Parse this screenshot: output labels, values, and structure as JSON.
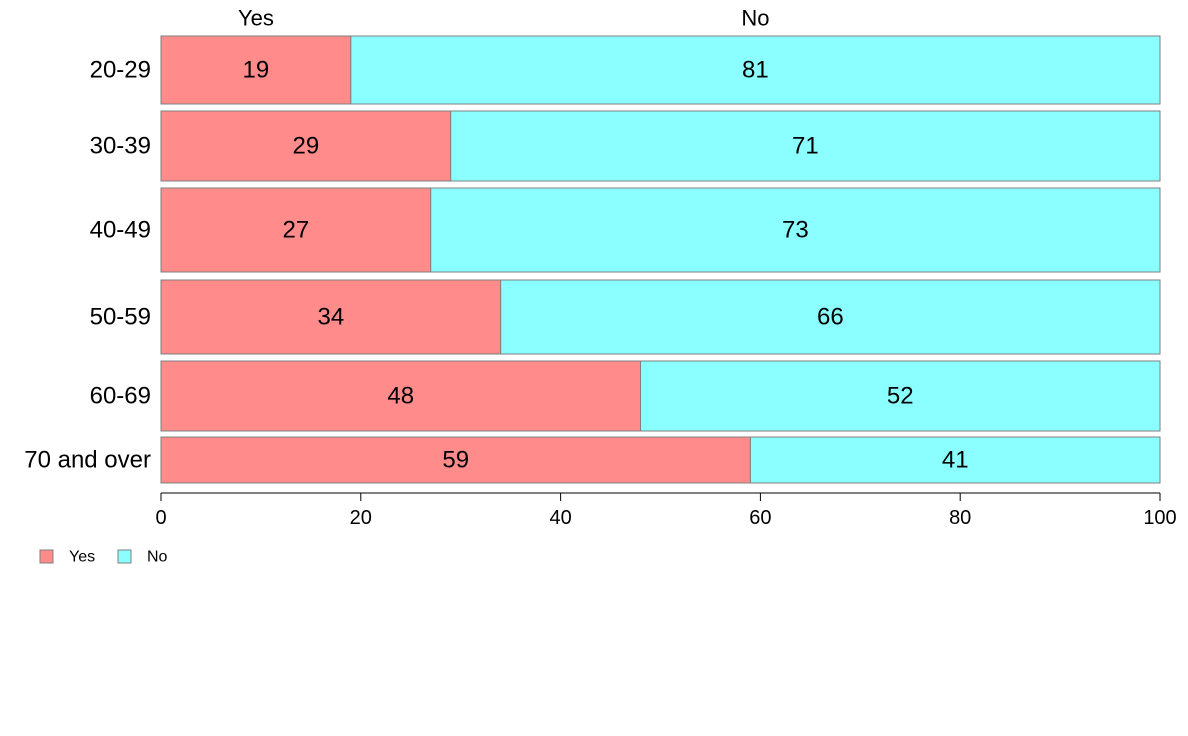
{
  "chart_data": {
    "type": "bar",
    "orientation": "horizontal",
    "stacked": true,
    "categories": [
      "20-29",
      "30-39",
      "40-49",
      "50-59",
      "60-69",
      "70 and over"
    ],
    "series": [
      {
        "name": "Yes",
        "values": [
          19,
          29,
          27,
          34,
          48,
          59
        ],
        "color": "#ff8b8b"
      },
      {
        "name": "No",
        "values": [
          81,
          71,
          73,
          66,
          52,
          41
        ],
        "color": "#8bffff"
      }
    ],
    "xlim": [
      0,
      100
    ],
    "x_ticks": [
      "0",
      "20",
      "40",
      "60",
      "80",
      "100"
    ],
    "column_labels": [
      "Yes",
      "No"
    ],
    "legend_position": "bottom-left",
    "grid": false,
    "title": "",
    "xlabel": "",
    "ylabel": ""
  }
}
